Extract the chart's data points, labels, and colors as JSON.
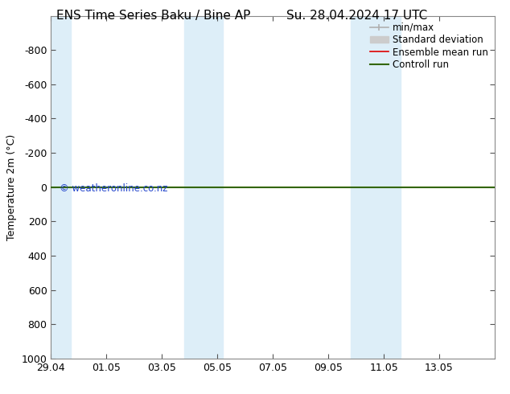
{
  "title_left": "ENS Time Series Baku / Bine AP",
  "title_right": "Su. 28.04.2024 17 UTC",
  "ylabel": "Temperature 2m (°C)",
  "watermark": "© weatheronline.co.nz",
  "ylim_bottom": 1000,
  "ylim_top": -1000,
  "yticks": [
    -800,
    -600,
    -400,
    -200,
    0,
    200,
    400,
    600,
    800,
    1000
  ],
  "xlim": [
    0,
    16
  ],
  "xtick_labels": [
    "29.04",
    "01.05",
    "03.05",
    "05.05",
    "07.05",
    "09.05",
    "11.05",
    "13.05"
  ],
  "xtick_positions": [
    0,
    2,
    4,
    6,
    8,
    10,
    12,
    14
  ],
  "background_color": "#ffffff",
  "plot_bg_color": "#ffffff",
  "shaded_bands": [
    {
      "x_start": -0.1,
      "x_end": 0.7,
      "color": "#ddeef8"
    },
    {
      "x_start": 4.8,
      "x_end": 6.2,
      "color": "#ddeef8"
    },
    {
      "x_start": 10.8,
      "x_end": 12.6,
      "color": "#ddeef8"
    }
  ],
  "control_line_y": 0,
  "ensemble_line_y": 0,
  "legend_items": [
    {
      "label": "min/max",
      "color": "#b0b0b0",
      "lw": 1.2
    },
    {
      "label": "Standard deviation",
      "color": "#cccccc",
      "lw": 7
    },
    {
      "label": "Ensemble mean run",
      "color": "#dd0000",
      "lw": 1.2
    },
    {
      "label": "Controll run",
      "color": "#336600",
      "lw": 1.5
    }
  ],
  "border_color": "#888888",
  "font_size_title": 11,
  "font_size_ticks": 9,
  "font_size_legend": 8.5,
  "font_size_ylabel": 9,
  "watermark_color": "#2244cc"
}
